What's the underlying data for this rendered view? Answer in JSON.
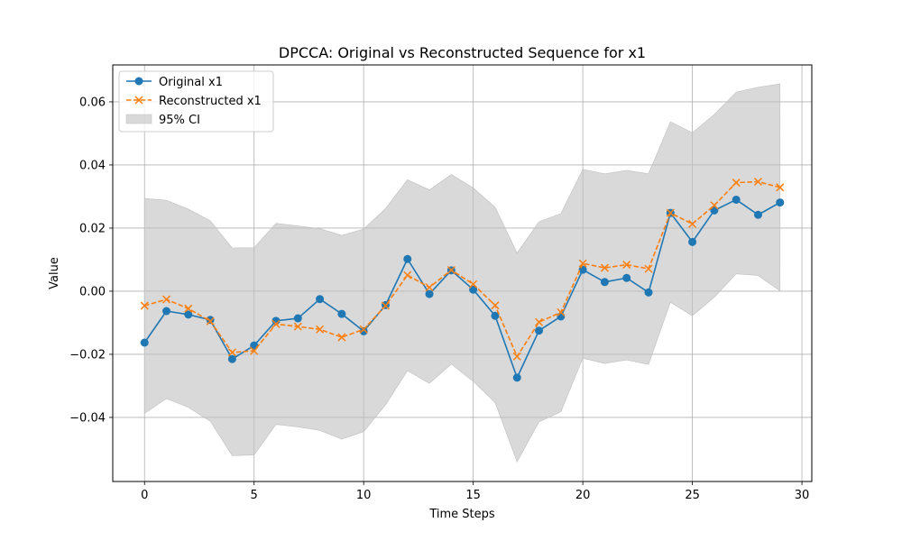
{
  "chart_data": {
    "type": "line",
    "title": "DPCCA: Original vs Reconstructed Sequence for x1",
    "xlabel": "Time Steps",
    "ylabel": "Value",
    "xlim": [
      -1.45,
      30.45
    ],
    "ylim": [
      -0.0603,
      0.0717
    ],
    "xticks": [
      0,
      5,
      10,
      15,
      20,
      25,
      30
    ],
    "yticks": [
      -0.04,
      -0.02,
      0.0,
      0.02,
      0.04,
      0.06
    ],
    "ytick_labels": [
      "−0.04",
      "−0.02",
      "0.00",
      "0.02",
      "0.04",
      "0.06"
    ],
    "grid": true,
    "legend_position": "top-left",
    "x": [
      0,
      1,
      2,
      3,
      4,
      5,
      6,
      7,
      8,
      9,
      10,
      11,
      12,
      13,
      14,
      15,
      16,
      17,
      18,
      19,
      20,
      21,
      22,
      23,
      24,
      25,
      26,
      27,
      28,
      29
    ],
    "series": [
      {
        "name": "Original x1",
        "style": "solid-circle",
        "color": "#1f77b4",
        "values": [
          -0.0163,
          -0.0063,
          -0.0074,
          -0.0091,
          -0.0215,
          -0.0172,
          -0.0094,
          -0.0086,
          -0.0025,
          -0.0072,
          -0.0127,
          -0.0044,
          0.0102,
          -0.0009,
          0.0066,
          0.0005,
          -0.0078,
          -0.0274,
          -0.0125,
          -0.008,
          0.0068,
          0.0029,
          0.0042,
          -0.0004,
          0.0248,
          0.0156,
          0.0256,
          0.029,
          0.0242,
          0.0281
        ]
      },
      {
        "name": "Reconstructed x1",
        "style": "dashed-x",
        "color": "#ff7f0e",
        "values": [
          -0.0046,
          -0.0026,
          -0.0055,
          -0.0095,
          -0.0194,
          -0.0189,
          -0.0104,
          -0.0112,
          -0.0121,
          -0.0146,
          -0.0121,
          -0.0046,
          0.0051,
          0.0012,
          0.0067,
          0.0022,
          -0.0045,
          -0.0207,
          -0.0098,
          -0.0067,
          0.0088,
          0.0074,
          0.0084,
          0.0071,
          0.0248,
          0.0213,
          0.0272,
          0.0344,
          0.0347,
          0.0329
        ]
      }
    ],
    "ci_band": {
      "name": "95% CI",
      "color": "#bfbfbf",
      "lower": [
        -0.0387,
        -0.034,
        -0.0368,
        -0.0412,
        -0.0521,
        -0.0519,
        -0.0422,
        -0.043,
        -0.0441,
        -0.0469,
        -0.0445,
        -0.036,
        -0.0252,
        -0.0292,
        -0.0231,
        -0.0286,
        -0.0353,
        -0.0541,
        -0.0414,
        -0.0382,
        -0.0212,
        -0.0229,
        -0.0218,
        -0.0232,
        -0.0035,
        -0.0078,
        -0.0019,
        0.0055,
        0.005,
        0.0001
      ],
      "upper": [
        0.0294,
        0.0288,
        0.026,
        0.0223,
        0.0137,
        0.0138,
        0.0215,
        0.0207,
        0.0198,
        0.0177,
        0.0197,
        0.0262,
        0.0353,
        0.0321,
        0.037,
        0.0327,
        0.0266,
        0.0121,
        0.022,
        0.0246,
        0.0386,
        0.0372,
        0.0383,
        0.0372,
        0.0537,
        0.0502,
        0.056,
        0.0631,
        0.0646,
        0.0657
      ]
    }
  }
}
